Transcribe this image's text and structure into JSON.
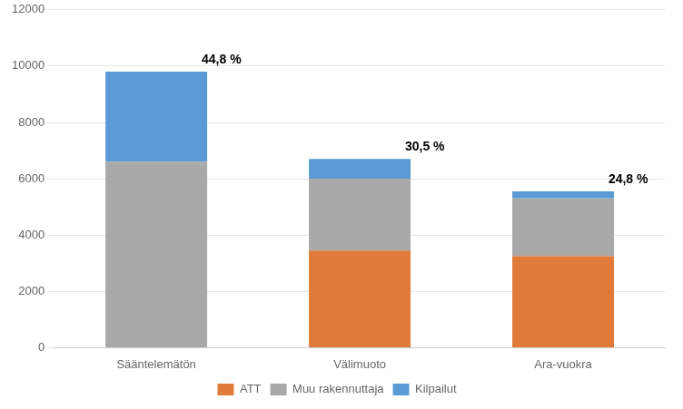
{
  "chart_data": {
    "type": "bar",
    "stacked": true,
    "categories": [
      "Sääntelemätön",
      "Välimuoto",
      "Ara-vuokra"
    ],
    "series": [
      {
        "name": "ATT",
        "color": "#E07B39",
        "values": [
          0,
          3450,
          3250
        ]
      },
      {
        "name": "Muu rakennuttaja",
        "color": "#A9A9A9",
        "values": [
          6600,
          2550,
          2050
        ]
      },
      {
        "name": "Kilpailut",
        "color": "#5B9BD5",
        "values": [
          3200,
          700,
          250
        ]
      }
    ],
    "annotations": [
      {
        "category": "Sääntelemätön",
        "text": "44,8 %"
      },
      {
        "category": "Välimuoto",
        "text": "30,5 %"
      },
      {
        "category": "Ara-vuokra",
        "text": "24,8 %"
      }
    ],
    "ylim": [
      0,
      12000
    ],
    "yticks": [
      0,
      2000,
      4000,
      6000,
      8000,
      10000,
      12000
    ],
    "grid": true,
    "legend": "bottom"
  }
}
